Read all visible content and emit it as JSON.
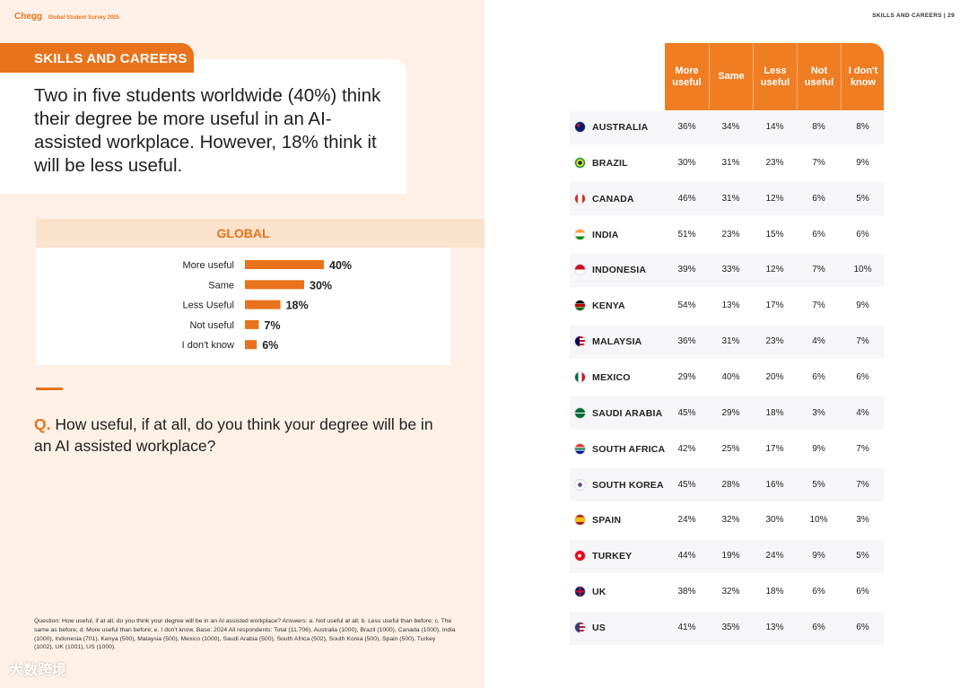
{
  "header": {
    "brand": "Chegg",
    "subtitle": "Global Student Survey 2025",
    "page_label": "SKILLS AND CAREERS | 29"
  },
  "section_tag": "SKILLS AND CAREERS",
  "headline": "Two in five students worldwide (40%) think their degree be more useful in an AI-assisted workplace. However, 18% think it will be less useful.",
  "question": {
    "mark": "Q.",
    "text": "How useful, if at all, do you think your degree will be in an AI assisted workplace?"
  },
  "footnote": "Question: How useful, if at all, do you think your degree will be in an AI assisted workplace? Answers: a. Not useful at all; b. Less useful than before; c. The same as before; d. More useful than before; e. I don't know. Base: 2024 All respondents: Total (11,706), Australia (1000), Brazil (1000), Canada (1000), India (1000), Indonesia (701), Kenya (500), Malaysia (500), Mexico (1000), Saudi Arabia (500), South Africa (502), South Korea (500), Spain (500), Turkey (1002), UK (1001), US (1000).",
  "watermark": "大数跨境",
  "colors": {
    "accent": "#e8731c",
    "header": "#ee7d23",
    "left_bg": "#fdf1e7",
    "row_bg": "#f6f6f8"
  },
  "chart_data": [
    {
      "type": "bar",
      "orientation": "horizontal",
      "title": "GLOBAL",
      "categories": [
        "More useful",
        "Same",
        "Less Useful",
        "Not useful",
        "I don't know"
      ],
      "values": [
        40,
        30,
        18,
        7,
        6
      ],
      "value_labels": [
        "40%",
        "30%",
        "18%",
        "7%",
        "6%"
      ],
      "unit": "%",
      "xlim": [
        0,
        40
      ]
    },
    {
      "type": "table",
      "columns": [
        "More useful",
        "Same",
        "Less useful",
        "Not useful",
        "I don't know"
      ],
      "rows": [
        {
          "country": "AUSTRALIA",
          "flag": "australia-flag-icon",
          "values": [
            "36%",
            "34%",
            "14%",
            "8%",
            "8%"
          ]
        },
        {
          "country": "BRAZIL",
          "flag": "brazil-flag-icon",
          "values": [
            "30%",
            "31%",
            "23%",
            "7%",
            "9%"
          ]
        },
        {
          "country": "CANADA",
          "flag": "canada-flag-icon",
          "values": [
            "46%",
            "31%",
            "12%",
            "6%",
            "5%"
          ]
        },
        {
          "country": "INDIA",
          "flag": "india-flag-icon",
          "values": [
            "51%",
            "23%",
            "15%",
            "6%",
            "6%"
          ]
        },
        {
          "country": "INDONESIA",
          "flag": "indonesia-flag-icon",
          "values": [
            "39%",
            "33%",
            "12%",
            "7%",
            "10%"
          ]
        },
        {
          "country": "KENYA",
          "flag": "kenya-flag-icon",
          "values": [
            "54%",
            "13%",
            "17%",
            "7%",
            "9%"
          ]
        },
        {
          "country": "MALAYSIA",
          "flag": "malaysia-flag-icon",
          "values": [
            "36%",
            "31%",
            "23%",
            "4%",
            "7%"
          ]
        },
        {
          "country": "MEXICO",
          "flag": "mexico-flag-icon",
          "values": [
            "29%",
            "40%",
            "20%",
            "6%",
            "6%"
          ]
        },
        {
          "country": "SAUDI ARABIA",
          "flag": "saudi-arabia-flag-icon",
          "values": [
            "45%",
            "29%",
            "18%",
            "3%",
            "4%"
          ]
        },
        {
          "country": "SOUTH AFRICA",
          "flag": "south-africa-flag-icon",
          "values": [
            "42%",
            "25%",
            "17%",
            "9%",
            "7%"
          ]
        },
        {
          "country": "SOUTH KOREA",
          "flag": "south-korea-flag-icon",
          "values": [
            "45%",
            "28%",
            "16%",
            "5%",
            "7%"
          ]
        },
        {
          "country": "SPAIN",
          "flag": "spain-flag-icon",
          "values": [
            "24%",
            "32%",
            "30%",
            "10%",
            "3%"
          ]
        },
        {
          "country": "TURKEY",
          "flag": "turkey-flag-icon",
          "values": [
            "44%",
            "19%",
            "24%",
            "9%",
            "5%"
          ]
        },
        {
          "country": "UK",
          "flag": "uk-flag-icon",
          "values": [
            "38%",
            "32%",
            "18%",
            "6%",
            "6%"
          ]
        },
        {
          "country": "US",
          "flag": "us-flag-icon",
          "values": [
            "41%",
            "35%",
            "13%",
            "6%",
            "6%"
          ]
        }
      ]
    }
  ]
}
